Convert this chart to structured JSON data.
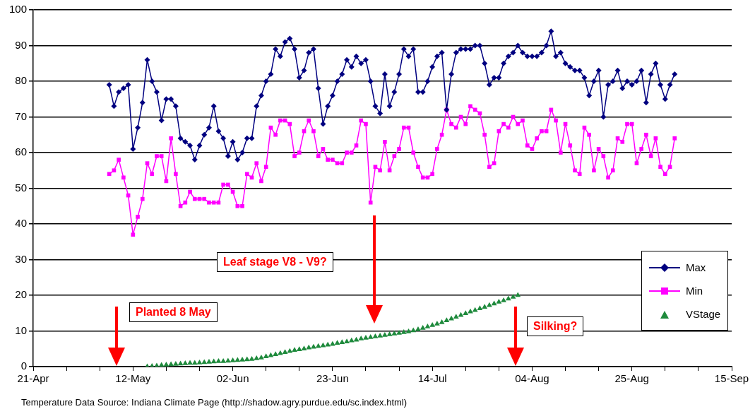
{
  "chart_data": {
    "type": "line",
    "xlim": [
      "--04-21",
      "--09-15"
    ],
    "ylim": [
      0,
      100
    ],
    "xticks": [
      {
        "value": "--04-21",
        "label": "21-Apr"
      },
      {
        "value": "--04-28",
        "label": null
      },
      {
        "value": "--05-05",
        "label": null
      },
      {
        "value": "--05-12",
        "label": "12-May"
      },
      {
        "value": "--05-19",
        "label": null
      },
      {
        "value": "--05-26",
        "label": null
      },
      {
        "value": "--06-02",
        "label": "02-Jun"
      },
      {
        "value": "--06-09",
        "label": null
      },
      {
        "value": "--06-16",
        "label": null
      },
      {
        "value": "--06-23",
        "label": "23-Jun"
      },
      {
        "value": "--06-30",
        "label": null
      },
      {
        "value": "--07-07",
        "label": null
      },
      {
        "value": "--07-14",
        "label": "14-Jul"
      },
      {
        "value": "--07-21",
        "label": null
      },
      {
        "value": "--07-28",
        "label": null
      },
      {
        "value": "--08-04",
        "label": "04-Aug"
      },
      {
        "value": "--08-11",
        "label": null
      },
      {
        "value": "--08-18",
        "label": null
      },
      {
        "value": "--08-25",
        "label": "25-Aug"
      },
      {
        "value": "--09-01",
        "label": null
      },
      {
        "value": "--09-08",
        "label": null
      },
      {
        "value": "--09-15",
        "label": "15-Sep"
      }
    ],
    "yticks": [
      0,
      10,
      20,
      30,
      40,
      50,
      60,
      70,
      80,
      90,
      100
    ],
    "grid": "y",
    "legend": "right",
    "x": [
      "--05-07",
      "--05-08",
      "--05-09",
      "--05-10",
      "--05-11",
      "--05-12",
      "--05-13",
      "--05-14",
      "--05-15",
      "--05-16",
      "--05-17",
      "--05-18",
      "--05-19",
      "--05-20",
      "--05-21",
      "--05-22",
      "--05-23",
      "--05-24",
      "--05-25",
      "--05-26",
      "--05-27",
      "--05-28",
      "--05-29",
      "--05-30",
      "--05-31",
      "--06-01",
      "--06-02",
      "--06-03",
      "--06-04",
      "--06-05",
      "--06-06",
      "--06-07",
      "--06-08",
      "--06-09",
      "--06-10",
      "--06-11",
      "--06-12",
      "--06-13",
      "--06-14",
      "--06-15",
      "--06-16",
      "--06-17",
      "--06-18",
      "--06-19",
      "--06-20",
      "--06-21",
      "--06-22",
      "--06-23",
      "--06-24",
      "--06-25",
      "--06-26",
      "--06-27",
      "--06-28",
      "--06-29",
      "--06-30",
      "--07-01",
      "--07-02",
      "--07-03",
      "--07-04",
      "--07-05",
      "--07-06",
      "--07-07",
      "--07-08",
      "--07-09",
      "--07-10",
      "--07-11",
      "--07-12",
      "--07-13",
      "--07-14",
      "--07-15",
      "--07-16",
      "--07-17",
      "--07-18",
      "--07-19",
      "--07-20",
      "--07-21",
      "--07-22",
      "--07-23",
      "--07-24",
      "--07-25",
      "--07-26",
      "--07-27",
      "--07-28",
      "--07-29",
      "--07-30",
      "--07-31",
      "--08-01",
      "--08-02",
      "--08-03",
      "--08-04",
      "--08-05",
      "--08-06",
      "--08-07",
      "--08-08",
      "--08-09",
      "--08-10",
      "--08-11",
      "--08-12",
      "--08-13",
      "--08-14",
      "--08-15",
      "--08-16",
      "--08-17",
      "--08-18",
      "--08-19",
      "--08-20",
      "--08-21",
      "--08-22",
      "--08-23",
      "--08-24",
      "--08-25",
      "--08-26",
      "--08-27",
      "--08-28",
      "--08-29",
      "--08-30",
      "--08-31",
      "--09-01",
      "--09-02",
      "--09-03"
    ],
    "series": [
      {
        "name": "Max",
        "marker": "diamond",
        "color": "#000080",
        "values": [
          79,
          73,
          77,
          78,
          79,
          61,
          67,
          74,
          86,
          80,
          77,
          69,
          75,
          75,
          73,
          64,
          63,
          62,
          58,
          62,
          65,
          67,
          73,
          66,
          64,
          59,
          63,
          58,
          60,
          64,
          64,
          73,
          76,
          80,
          82,
          89,
          87,
          91,
          92,
          89,
          81,
          83,
          88,
          89,
          78,
          68,
          73,
          76,
          80,
          82,
          86,
          84,
          87,
          85,
          86,
          80,
          73,
          71,
          82,
          73,
          77,
          82,
          89,
          87,
          89,
          77,
          77,
          80,
          84,
          87,
          88,
          72,
          82,
          88,
          89,
          89,
          89,
          90,
          90,
          85,
          79,
          81,
          81,
          85,
          87,
          88,
          90,
          88,
          87,
          87,
          87,
          88,
          90,
          94,
          87,
          88,
          85,
          84,
          83,
          83,
          81,
          76,
          80,
          83,
          70,
          79,
          80,
          83,
          78,
          80,
          79,
          80,
          83,
          74,
          82,
          85,
          79,
          75,
          79,
          82
        ]
      },
      {
        "name": "Min",
        "marker": "square",
        "color": "#ff00ff",
        "values": [
          54,
          55,
          58,
          53,
          48,
          37,
          42,
          47,
          57,
          54,
          59,
          59,
          52,
          64,
          54,
          45,
          46,
          49,
          47,
          47,
          47,
          46,
          46,
          46,
          51,
          51,
          49,
          45,
          45,
          54,
          53,
          57,
          52,
          56,
          67,
          65,
          69,
          69,
          68,
          59,
          60,
          66,
          69,
          66,
          59,
          61,
          58,
          58,
          57,
          57,
          60,
          60,
          62,
          69,
          68,
          46,
          56,
          55,
          63,
          55,
          59,
          61,
          67,
          67,
          60,
          56,
          53,
          53,
          54,
          61,
          65,
          72,
          68,
          67,
          70,
          68,
          73,
          72,
          71,
          65,
          56,
          57,
          66,
          68,
          67,
          70,
          68,
          69,
          62,
          61,
          64,
          66,
          66,
          72,
          69,
          60,
          68,
          62,
          55,
          54,
          67,
          65,
          55,
          61,
          59,
          53,
          55,
          64,
          63,
          68,
          68,
          57,
          61,
          65,
          59,
          64,
          56,
          54,
          56,
          64
        ]
      },
      {
        "name": "VStage",
        "type": "scatter",
        "marker": "triangle",
        "color": "#1e8a3c",
        "x": [
          "--05-15",
          "--05-16",
          "--05-17",
          "--05-18",
          "--05-19",
          "--05-20",
          "--05-21",
          "--05-22",
          "--05-23",
          "--05-24",
          "--05-25",
          "--05-26",
          "--05-27",
          "--05-28",
          "--05-29",
          "--05-30",
          "--05-31",
          "--06-01",
          "--06-02",
          "--06-03",
          "--06-04",
          "--06-05",
          "--06-06",
          "--06-07",
          "--06-08",
          "--06-09",
          "--06-10",
          "--06-11",
          "--06-12",
          "--06-13",
          "--06-14",
          "--06-15",
          "--06-16",
          "--06-17",
          "--06-18",
          "--06-19",
          "--06-20",
          "--06-21",
          "--06-22",
          "--06-23",
          "--06-24",
          "--06-25",
          "--06-26",
          "--06-27",
          "--06-28",
          "--06-29",
          "--06-30",
          "--07-01",
          "--07-02",
          "--07-03",
          "--07-04",
          "--07-05",
          "--07-06",
          "--07-07",
          "--07-08",
          "--07-09",
          "--07-10",
          "--07-11",
          "--07-12",
          "--07-13",
          "--07-14",
          "--07-15",
          "--07-16",
          "--07-17",
          "--07-18",
          "--07-19",
          "--07-20",
          "--07-21",
          "--07-22",
          "--07-23",
          "--07-24",
          "--07-25",
          "--07-26",
          "--07-27",
          "--07-28",
          "--07-29",
          "--07-30",
          "--07-31",
          "--08-01"
        ],
        "values": [
          0,
          0.1,
          0.2,
          0.4,
          0.5,
          0.6,
          0.7,
          0.8,
          0.9,
          1.0,
          1.0,
          1.1,
          1.2,
          1.3,
          1.4,
          1.5,
          1.5,
          1.6,
          1.7,
          1.8,
          1.9,
          2.0,
          2.1,
          2.3,
          2.5,
          2.8,
          3.1,
          3.4,
          3.7,
          4.0,
          4.3,
          4.6,
          4.8,
          5.0,
          5.3,
          5.5,
          5.7,
          5.9,
          6.1,
          6.3,
          6.6,
          6.8,
          7.0,
          7.3,
          7.5,
          7.8,
          8.0,
          8.2,
          8.4,
          8.6,
          8.8,
          9.0,
          9.2,
          9.4,
          9.6,
          9.8,
          10.1,
          10.4,
          10.8,
          11.2,
          11.6,
          12.0,
          12.4,
          12.9,
          13.4,
          13.9,
          14.4,
          14.9,
          15.4,
          15.8,
          16.3,
          16.7,
          17.2,
          17.6,
          18.1,
          18.5,
          19.0,
          19.5,
          20.0
        ]
      }
    ],
    "annotations": [
      "Planted 8 May",
      "Leaf stage V8 - V9?",
      "Silking?",
      "Temperature Data Source: Indiana Climate Page (http://shadow.agry.purdue.edu/sc.index.html)"
    ]
  }
}
